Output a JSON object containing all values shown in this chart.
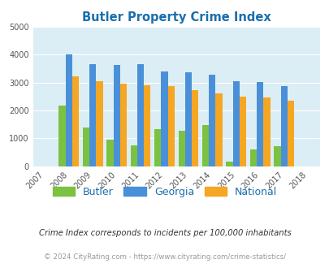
{
  "title": "Butler Property Crime Index",
  "years": [
    2007,
    2008,
    2009,
    2010,
    2011,
    2012,
    2013,
    2014,
    2015,
    2016,
    2017,
    2018
  ],
  "butler": [
    0,
    2170,
    1400,
    960,
    760,
    1340,
    1280,
    1470,
    175,
    610,
    730,
    0
  ],
  "georgia": [
    0,
    4020,
    3670,
    3640,
    3650,
    3410,
    3360,
    3290,
    3050,
    3010,
    2880,
    0
  ],
  "national": [
    0,
    3210,
    3050,
    2960,
    2910,
    2870,
    2730,
    2620,
    2490,
    2460,
    2360,
    0
  ],
  "bar_width": 0.28,
  "ylim": [
    0,
    5000
  ],
  "yticks": [
    0,
    1000,
    2000,
    3000,
    4000,
    5000
  ],
  "butler_color": "#7bc142",
  "georgia_color": "#4a90d9",
  "national_color": "#f5a623",
  "bg_color": "#dceef5",
  "title_color": "#1a6fad",
  "legend_labels": [
    "Butler",
    "Georgia",
    "National"
  ],
  "footnote1": "Crime Index corresponds to incidents per 100,000 inhabitants",
  "footnote2": "© 2024 CityRating.com - https://www.cityrating.com/crime-statistics/",
  "footnote_color1": "#333333",
  "footnote_color2": "#999999"
}
